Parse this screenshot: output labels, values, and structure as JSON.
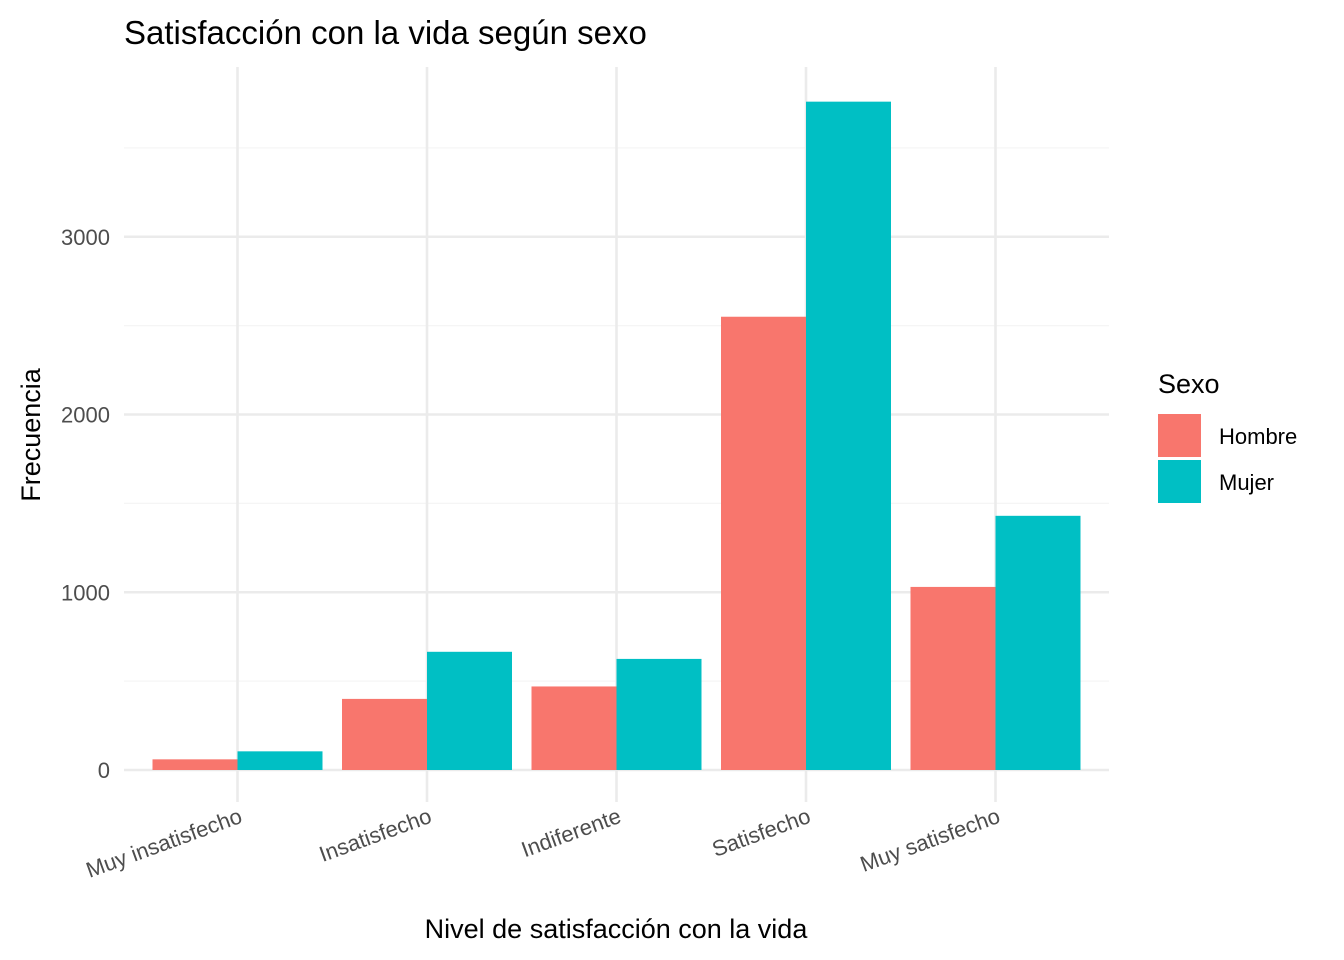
{
  "chart_data": {
    "type": "bar",
    "title": "Satisfacción con la vida según sexo",
    "xlabel": "Nivel de satisfacción con la vida",
    "ylabel": "Frecuencia",
    "categories": [
      "Muy insatisfecho",
      "Insatisfecho",
      "Indiferente",
      "Satisfecho",
      "Muy satisfecho"
    ],
    "series": [
      {
        "name": "Hombre",
        "color": "#F8766D",
        "values": [
          60,
          400,
          470,
          2550,
          1030
        ]
      },
      {
        "name": "Mujer",
        "color": "#00BFC4",
        "values": [
          105,
          665,
          625,
          3760,
          1430
        ]
      }
    ],
    "ylim": [
      0,
      4000
    ],
    "yticks": [
      0,
      1000,
      2000,
      3000
    ],
    "ytick_labels": [
      "0",
      "1000",
      "2000",
      "3000"
    ],
    "grid": true,
    "legend": {
      "title": "Sexo",
      "position": "right"
    }
  }
}
